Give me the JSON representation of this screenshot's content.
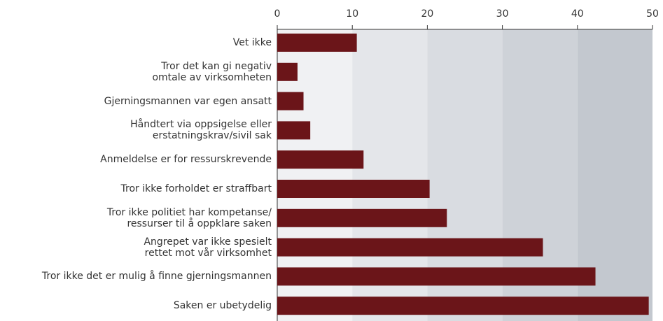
{
  "chart_data": {
    "type": "bar",
    "orientation": "horizontal",
    "categories": [
      "Vet ikke",
      "Tror det kan gi negativ\nomtale av virksomheten",
      "Gjerningsmannen var egen ansatt",
      "Håndtert via oppsigelse eller\nerstatningskrav/sivil sak",
      "Anmeldelse er for ressurskrevende",
      "Tror ikke forholdet er straffbart",
      "Tror ikke politiet har kompetanse/\nressurser til å oppklare saken",
      "Angrepet var ikke spesielt\nrettet mot vår virksomhet",
      "Tror ikke det er mulig å finne gjerningsmannen",
      "Saken er ubetydelig"
    ],
    "values": [
      10.6,
      2.7,
      3.5,
      4.4,
      11.5,
      20.3,
      22.6,
      35.4,
      42.4,
      49.5
    ],
    "color": "#6b1519",
    "xlim": [
      0,
      50
    ],
    "xticks": [
      0,
      10,
      20,
      30,
      40,
      50
    ],
    "band_colors": [
      "#f0f1f3",
      "#e4e6ea",
      "#d9dce1",
      "#ced2d8",
      "#c3c8cf"
    ]
  }
}
